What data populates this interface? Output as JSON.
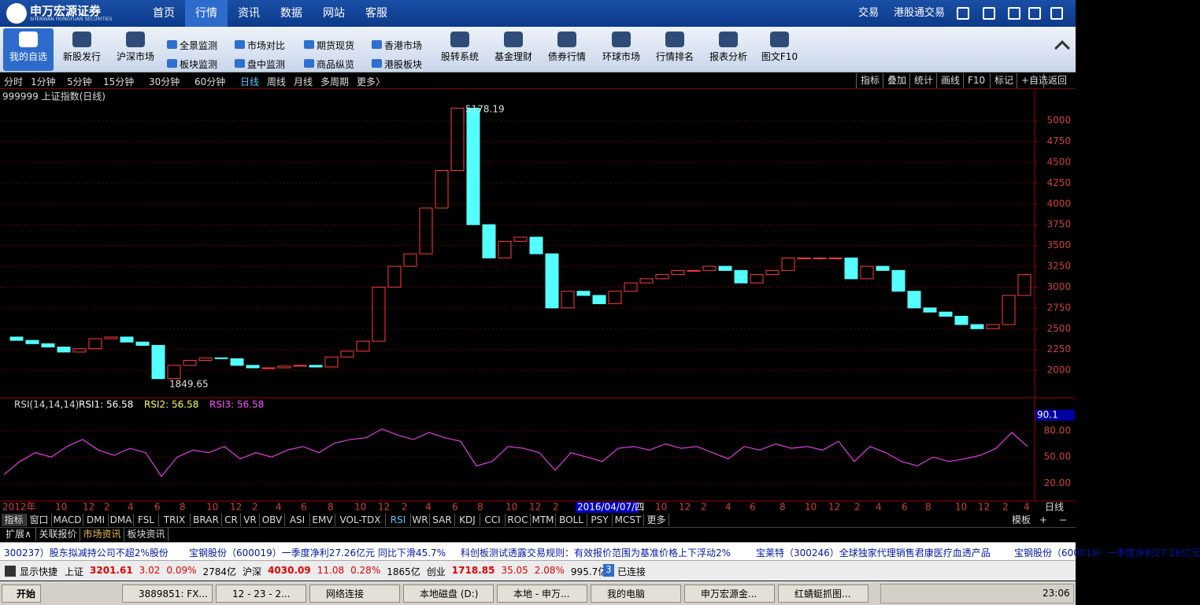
{
  "header": {
    "logo": "申万宏源证券",
    "logo_en": "SHENWAN HONGYUAN SECURITIES",
    "menu": [
      "首页",
      "行情",
      "资讯",
      "数据",
      "网站",
      "客服"
    ],
    "active_menu": 1,
    "right_links": [
      "交易",
      "港股通交易"
    ]
  },
  "toolbar": {
    "left": [
      "我的自选",
      "新股发行",
      "沪深市场"
    ],
    "small": [
      "全景监测",
      "板块监测",
      "市场对比",
      "盘中监测",
      "期货现货",
      "商品纵览",
      "香港市场",
      "港股板块"
    ],
    "right": [
      "股转系统",
      "基金理财",
      "债券行情",
      "环球市场",
      "行情排名",
      "报表分析",
      "图文F10"
    ]
  },
  "periods": {
    "items": [
      "分时",
      "1分钟",
      "5分钟",
      "15分钟",
      "30分钟",
      "60分钟",
      "日线",
      "周线",
      "月线",
      "多周期",
      "更多〉"
    ],
    "active": 6,
    "tools": [
      "指标",
      "叠加",
      "统计",
      "画线",
      "F10",
      "标记",
      "+自选",
      "返回"
    ]
  },
  "chart_data": [
    {
      "type": "candlestick",
      "title": "999999 上证指数(日线)",
      "high_label": "5178.19",
      "low_label": "1849.65",
      "values": [
        2400,
        2360,
        2320,
        2280,
        2220,
        2260,
        2380,
        2400,
        2340,
        2300,
        1900,
        2060,
        2120,
        2150,
        2140,
        2060,
        2030,
        2030,
        2050,
        2060,
        2040,
        2160,
        2230,
        2350,
        3000,
        3250,
        3400,
        3950,
        4400,
        5150,
        3750,
        3350,
        3550,
        3600,
        3400,
        2750,
        2950,
        2900,
        2800,
        2950,
        3050,
        3100,
        3150,
        3200,
        3200,
        3250,
        3200,
        3050,
        3150,
        3200,
        3350,
        3350,
        3350,
        3350,
        3100,
        3250,
        3200,
        2950,
        2750,
        2700,
        2650,
        2550,
        2500,
        2550,
        2900,
        3150
      ],
      "up_color": "#ff3c3c",
      "down_color": "#54ffff",
      "ylim": [
        1670,
        5370
      ],
      "yticks": [
        2000,
        2250,
        2500,
        2750,
        3000,
        3250,
        3500,
        3750,
        4000,
        4250,
        4500,
        4750,
        5000
      ],
      "grid": true
    },
    {
      "type": "line",
      "title": "RSI(14,14,14)",
      "legend": [
        "RSI1: 56.58",
        "RSI2: 56.58",
        "RSI3: 56.58"
      ],
      "legend_colors": [
        "#ffffff",
        "#ffff60",
        "#ff50ff"
      ],
      "cursor_label": "90.1",
      "series": [
        {
          "name": "RSI1",
          "color": "#e040e0",
          "values": [
            30,
            45,
            55,
            50,
            62,
            70,
            58,
            52,
            60,
            55,
            28,
            50,
            58,
            55,
            62,
            48,
            55,
            50,
            58,
            62,
            55,
            66,
            70,
            72,
            82,
            75,
            70,
            78,
            72,
            68,
            40,
            45,
            62,
            60,
            55,
            35,
            55,
            50,
            45,
            60,
            62,
            58,
            65,
            60,
            62,
            55,
            48,
            62,
            58,
            65,
            60,
            62,
            58,
            68,
            45,
            62,
            55,
            45,
            40,
            50,
            45,
            48,
            52,
            60,
            78,
            62
          ]
        }
      ],
      "ylim": [
        0,
        104
      ],
      "yticks": [
        {
          "value": 20,
          "label": "20.00"
        },
        {
          "value": 50,
          "label": "50.00"
        },
        {
          "value": 80,
          "label": "80.00"
        }
      ],
      "grid": true
    }
  ],
  "date_axis": {
    "labels": [
      "2012年",
      "10",
      "12",
      "2",
      "4",
      "6",
      "8",
      "10",
      "12",
      "2",
      "4",
      "6",
      "8",
      "10",
      "12",
      "2",
      "4",
      "6",
      "8",
      "10",
      "12",
      "2",
      "2016/04/07/四",
      "10",
      "12",
      "2",
      "4",
      "6",
      "8",
      "10",
      "12",
      "2",
      "4",
      "6",
      "8",
      "10",
      "12",
      "2",
      "4"
    ],
    "period": "日线"
  },
  "indicator_tabs": {
    "items": [
      "指标",
      "窗口",
      "MACD",
      "DMI",
      "DMA",
      "FSL",
      "TRIX",
      "BRAR",
      "CR",
      "VR",
      "OBV",
      "ASI",
      "EMV",
      "VOL-TDX",
      "RSI",
      "WR",
      "SAR",
      "KDJ",
      "CCI",
      "ROC",
      "MTM",
      "BOLL",
      "PSY",
      "MCST",
      "更多"
    ],
    "right": [
      "模板",
      "+",
      "−"
    ]
  },
  "extension": [
    "扩展∧",
    "关联报价",
    "市场资讯",
    "板块资讯"
  ],
  "news": [
    "300237）股东拟减持公司不超2%股份",
    "宝钢股份（600019）一季度净利27.26亿元  同比下滑45.7%",
    "科创板测试透露交易规则：有效报价范围为基准价格上下浮动2%",
    "宝莱特（300246）全球独家代理销售君康医疗血透产品",
    "宝钢股份（600019）一季度净利27.26亿元"
  ],
  "status": {
    "shortcut": "显示快捷",
    "indices": [
      {
        "name": "上证",
        "price": "3201.61",
        "change": "3.02",
        "pct": "0.09%",
        "amount": "2784亿"
      },
      {
        "name": "沪深",
        "price": "4030.09",
        "change": "11.08",
        "pct": "0.28%",
        "amount": "1865亿"
      },
      {
        "name": "创业",
        "price": "1718.85",
        "change": "35.05",
        "pct": "2.08%",
        "amount": "995.7亿"
      }
    ],
    "connections": "3",
    "connected": "已连接"
  },
  "taskbar": {
    "start": "开始",
    "tasks": [
      "3889851: FX...",
      "12 - 23 - 2...",
      "网络连接",
      "本地磁盘 (D:)",
      "本地 - 申万...",
      "我的电脑",
      "申万宏源金...",
      "红蜻蜓抓图..."
    ],
    "clock": "23:06"
  }
}
